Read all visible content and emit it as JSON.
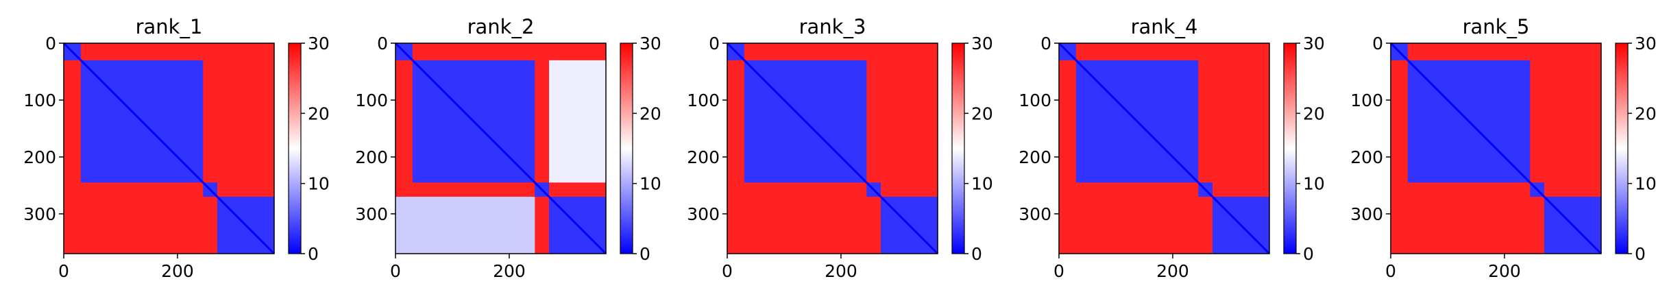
{
  "chart_data": [
    {
      "type": "heatmap",
      "title": "rank_1",
      "matrix_size": 370,
      "domains": [
        [
          0,
          30
        ],
        [
          30,
          245
        ],
        [
          245,
          270
        ],
        [
          270,
          370
        ]
      ],
      "within_domain_value": 3,
      "between_domain_value": 28,
      "intermediate_blocks": [],
      "x_ticks": [
        0,
        200
      ],
      "y_ticks": [
        0,
        100,
        200,
        300
      ],
      "colorbar": {
        "min": 0,
        "max": 30,
        "ticks": [
          0,
          10,
          20,
          30
        ],
        "colors": [
          "#0000ff",
          "#ffffff",
          "#ff0000"
        ]
      }
    },
    {
      "type": "heatmap",
      "title": "rank_2",
      "matrix_size": 370,
      "domains": [
        [
          0,
          30
        ],
        [
          30,
          245
        ],
        [
          245,
          270
        ],
        [
          270,
          370
        ]
      ],
      "within_domain_value": 3,
      "between_domain_value": 28,
      "intermediate_blocks": [
        {
          "rows": [
            270,
            370
          ],
          "cols": [
            0,
            245
          ],
          "value": 12
        },
        {
          "rows": [
            30,
            245
          ],
          "cols": [
            270,
            370
          ],
          "value": 14
        }
      ],
      "x_ticks": [
        0,
        200
      ],
      "y_ticks": [
        0,
        100,
        200,
        300
      ],
      "colorbar": {
        "min": 0,
        "max": 30,
        "ticks": [
          0,
          10,
          20,
          30
        ],
        "colors": [
          "#0000ff",
          "#ffffff",
          "#ff0000"
        ]
      }
    },
    {
      "type": "heatmap",
      "title": "rank_3",
      "matrix_size": 370,
      "domains": [
        [
          0,
          30
        ],
        [
          30,
          245
        ],
        [
          245,
          270
        ],
        [
          270,
          370
        ]
      ],
      "within_domain_value": 3,
      "between_domain_value": 28,
      "intermediate_blocks": [],
      "x_ticks": [
        0,
        200
      ],
      "y_ticks": [
        0,
        100,
        200,
        300
      ],
      "colorbar": {
        "min": 0,
        "max": 30,
        "ticks": [
          0,
          10,
          20,
          30
        ],
        "colors": [
          "#0000ff",
          "#ffffff",
          "#ff0000"
        ]
      }
    },
    {
      "type": "heatmap",
      "title": "rank_4",
      "matrix_size": 370,
      "domains": [
        [
          0,
          30
        ],
        [
          30,
          245
        ],
        [
          245,
          270
        ],
        [
          270,
          370
        ]
      ],
      "within_domain_value": 3,
      "between_domain_value": 28,
      "intermediate_blocks": [],
      "x_ticks": [
        0,
        200
      ],
      "y_ticks": [
        0,
        100,
        200,
        300
      ],
      "colorbar": {
        "min": 0,
        "max": 30,
        "ticks": [
          0,
          10,
          20,
          30
        ],
        "colors": [
          "#0000ff",
          "#ffffff",
          "#ff0000"
        ]
      }
    },
    {
      "type": "heatmap",
      "title": "rank_5",
      "matrix_size": 370,
      "domains": [
        [
          0,
          30
        ],
        [
          30,
          245
        ],
        [
          245,
          270
        ],
        [
          270,
          370
        ]
      ],
      "within_domain_value": 3,
      "between_domain_value": 28,
      "intermediate_blocks": [],
      "x_ticks": [
        0,
        200
      ],
      "y_ticks": [
        0,
        100,
        200,
        300
      ],
      "colorbar": {
        "min": 0,
        "max": 30,
        "ticks": [
          0,
          10,
          20,
          30
        ],
        "colors": [
          "#0000ff",
          "#ffffff",
          "#ff0000"
        ]
      }
    }
  ]
}
